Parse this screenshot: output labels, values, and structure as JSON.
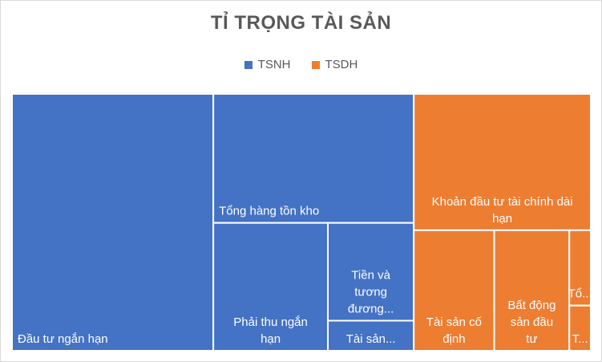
{
  "chart_data": {
    "type": "treemap",
    "title": "TỈ TRỌNG TÀI SẢN",
    "legend_position": "top",
    "series": [
      {
        "name": "TSNH",
        "color": "#4472c4"
      },
      {
        "name": "TSDH",
        "color": "#ed7d31"
      }
    ],
    "items": [
      {
        "label": "Đầu tư ngắn hạn",
        "series": "TSNH",
        "value": 2400
      },
      {
        "label": "Tổng hàng tồn kho",
        "series": "TSNH",
        "value": 1200
      },
      {
        "label": "Phải thu ngắn hạn",
        "series": "TSNH",
        "value": 680
      },
      {
        "label": "Tiền và tương đương...",
        "series": "TSNH",
        "value": 390
      },
      {
        "label": "Tài sản...",
        "series": "TSNH",
        "value": 120
      },
      {
        "label": "Khoản đầu tư tài chính dài hạn",
        "series": "TSDH",
        "value": 1120
      },
      {
        "label": "Tài sản cố định",
        "series": "TSDH",
        "value": 450
      },
      {
        "label": "Bất động sản đầu tư",
        "series": "TSDH",
        "value": 420
      },
      {
        "label": "Tổ...",
        "series": "TSDH",
        "value": 75
      },
      {
        "label": "T...",
        "series": "TSDH",
        "value": 45
      }
    ]
  }
}
